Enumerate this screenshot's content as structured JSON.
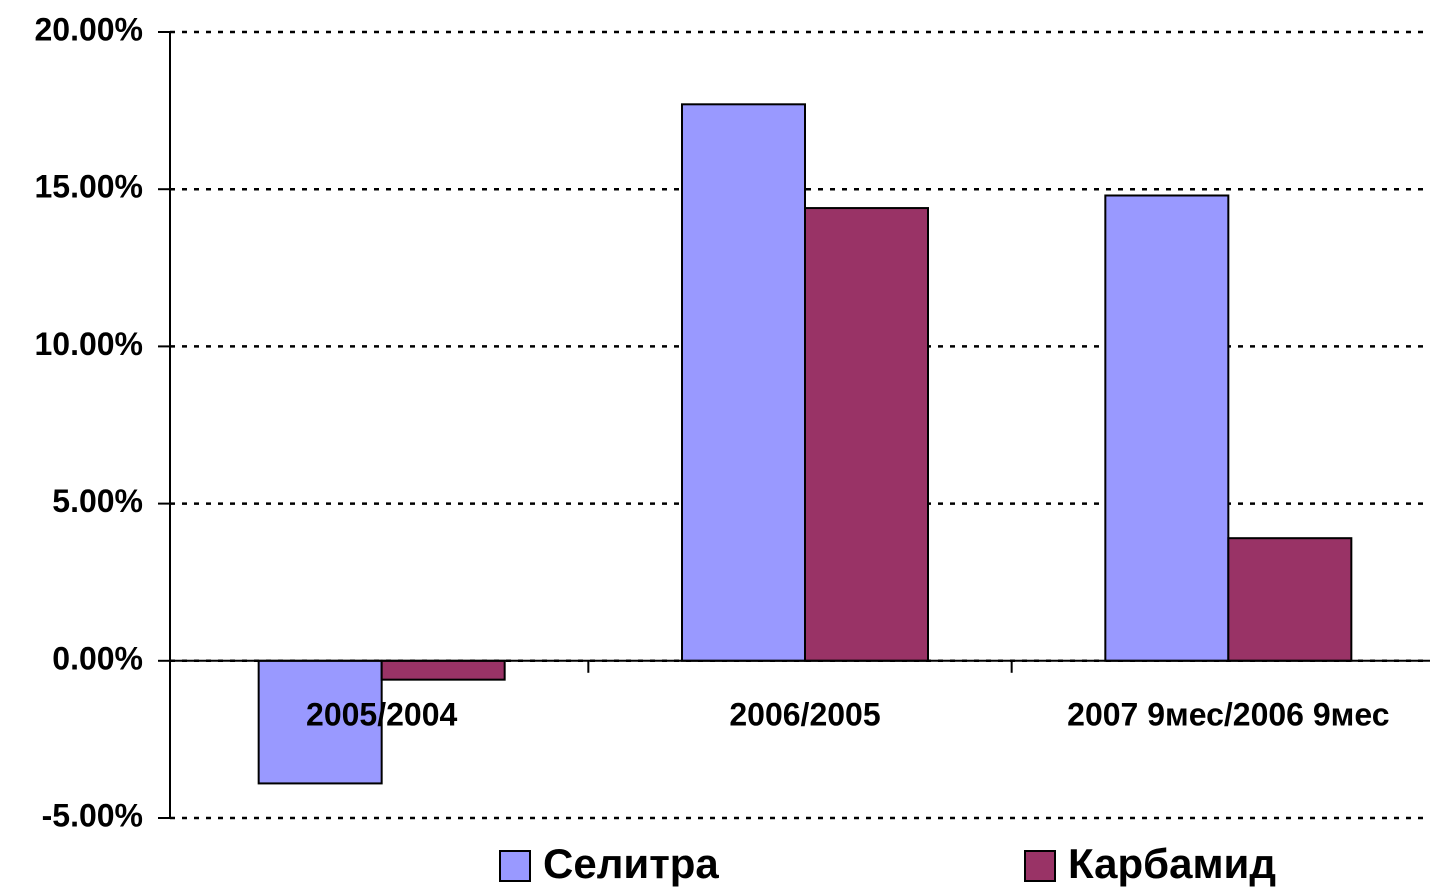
{
  "chart_data": {
    "type": "bar",
    "categories": [
      "2005/2004",
      "2006/2005",
      "2007 9мес/2006 9мес"
    ],
    "series": [
      {
        "name": "Селитра",
        "color": "#9999ff",
        "values": [
          -3.9,
          17.7,
          14.8
        ]
      },
      {
        "name": "Карбамид",
        "color": "#993366",
        "values": [
          -0.6,
          14.4,
          3.9
        ]
      }
    ],
    "ylim": [
      -5,
      20
    ],
    "yticks": [
      {
        "value": -5,
        "label": "-5.00%"
      },
      {
        "value": 0,
        "label": "0.00%"
      },
      {
        "value": 5,
        "label": "5.00%"
      },
      {
        "value": 10,
        "label": "10.00%"
      },
      {
        "value": 15,
        "label": "15.00%"
      },
      {
        "value": 20,
        "label": "20.00%"
      }
    ],
    "grid": true,
    "legend": "bottom"
  }
}
